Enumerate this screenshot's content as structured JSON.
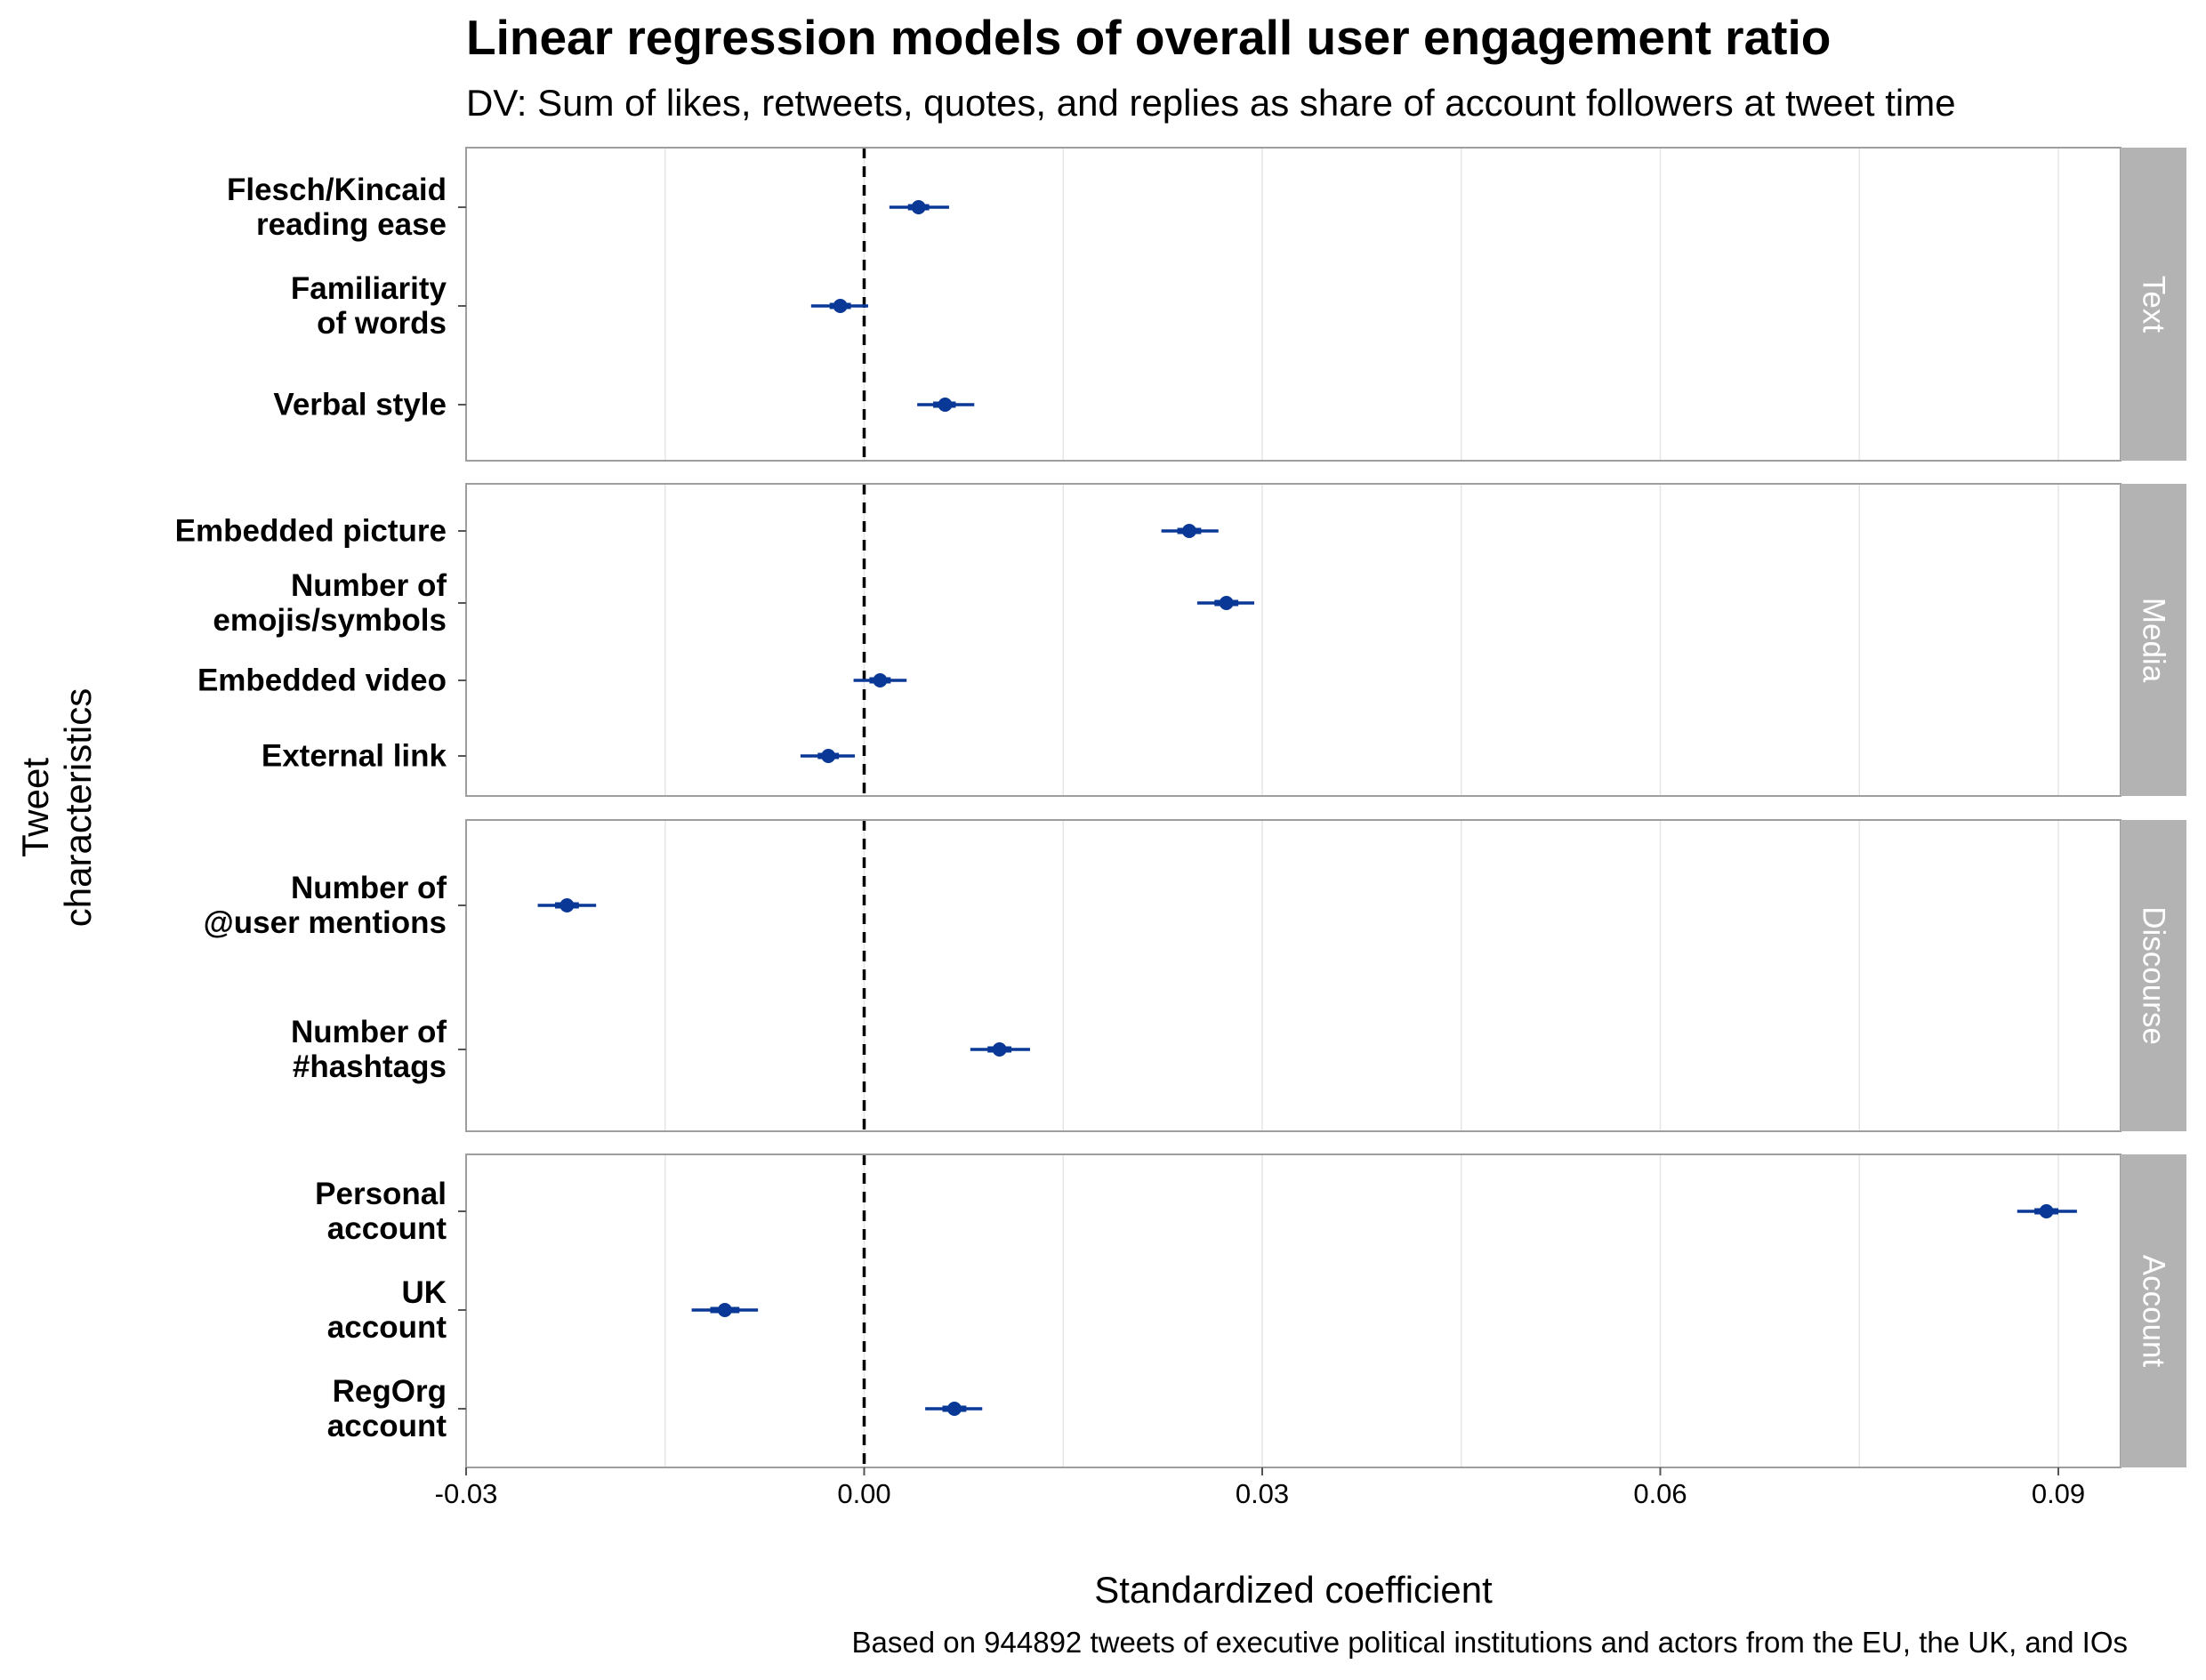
{
  "chart_data": {
    "type": "scatter",
    "title": "Linear regression models of overall user engagement ratio",
    "subtitle": "DV: Sum of likes, retweets, quotes, and replies as share of account followers at tweet time",
    "caption": "Based on 944892 tweets of executive political institutions and actors from the EU, the UK, and IOs",
    "xlabel": "Standardized coefficient",
    "ylabel_lines": [
      "Tweet",
      "characteristics"
    ],
    "xlim": [
      -0.03,
      0.097
    ],
    "xticks": [
      -0.03,
      0.0,
      0.03,
      0.06,
      0.09
    ],
    "xtick_labels": [
      "-0.03",
      "0.00",
      "0.03",
      "0.06",
      "0.09"
    ],
    "reference_line": 0,
    "point_color": "#0a3896",
    "strip_color": "#b3b3b3",
    "grid": true,
    "panels": [
      {
        "name": "Text",
        "terms": [
          {
            "label": [
              "Flesch/Kincaid",
              "reading ease"
            ],
            "estimate": 0.0041,
            "ci_inner": [
              0.0033,
              0.0049
            ],
            "ci_outer": [
              0.0019,
              0.0064
            ]
          },
          {
            "label": [
              "Familiarity",
              "of words"
            ],
            "estimate": -0.0018,
            "ci_inner": [
              -0.0026,
              -0.001
            ],
            "ci_outer": [
              -0.004,
              0.0003
            ]
          },
          {
            "label": [
              "Verbal style"
            ],
            "estimate": 0.0061,
            "ci_inner": [
              0.0052,
              0.0069
            ],
            "ci_outer": [
              0.004,
              0.0083
            ]
          }
        ]
      },
      {
        "name": "Media",
        "terms": [
          {
            "label": [
              "Embedded picture"
            ],
            "estimate": 0.0245,
            "ci_inner": [
              0.0236,
              0.0254
            ],
            "ci_outer": [
              0.0224,
              0.0267
            ]
          },
          {
            "label": [
              "Number of",
              "emojis/symbols"
            ],
            "estimate": 0.0273,
            "ci_inner": [
              0.0264,
              0.0282
            ],
            "ci_outer": [
              0.0251,
              0.0294
            ]
          },
          {
            "label": [
              "Embedded video"
            ],
            "estimate": 0.0012,
            "ci_inner": [
              0.0004,
              0.002
            ],
            "ci_outer": [
              -0.0008,
              0.0032
            ]
          },
          {
            "label": [
              "External link"
            ],
            "estimate": -0.0027,
            "ci_inner": [
              -0.0035,
              -0.0019
            ],
            "ci_outer": [
              -0.0048,
              -0.0007
            ]
          }
        ]
      },
      {
        "name": "Discourse",
        "terms": [
          {
            "label": [
              "Number of",
              "@user mentions"
            ],
            "estimate": -0.0224,
            "ci_inner": [
              -0.0233,
              -0.0215
            ],
            "ci_outer": [
              -0.0246,
              -0.0202
            ]
          },
          {
            "label": [
              "Number of",
              "#hashtags"
            ],
            "estimate": 0.0102,
            "ci_inner": [
              0.0093,
              0.0111
            ],
            "ci_outer": [
              0.008,
              0.0125
            ]
          }
        ]
      },
      {
        "name": "Account",
        "terms": [
          {
            "label": [
              "Personal",
              "account"
            ],
            "estimate": 0.0891,
            "ci_inner": [
              0.0882,
              0.09
            ],
            "ci_outer": [
              0.0869,
              0.0914
            ]
          },
          {
            "label": [
              "UK",
              "account"
            ],
            "estimate": -0.0105,
            "ci_inner": [
              -0.0116,
              -0.0094
            ],
            "ci_outer": [
              -0.013,
              -0.008
            ]
          },
          {
            "label": [
              "RegOrg",
              "account"
            ],
            "estimate": 0.0068,
            "ci_inner": [
              0.0059,
              0.0077
            ],
            "ci_outer": [
              0.0046,
              0.0089
            ]
          }
        ]
      }
    ]
  }
}
